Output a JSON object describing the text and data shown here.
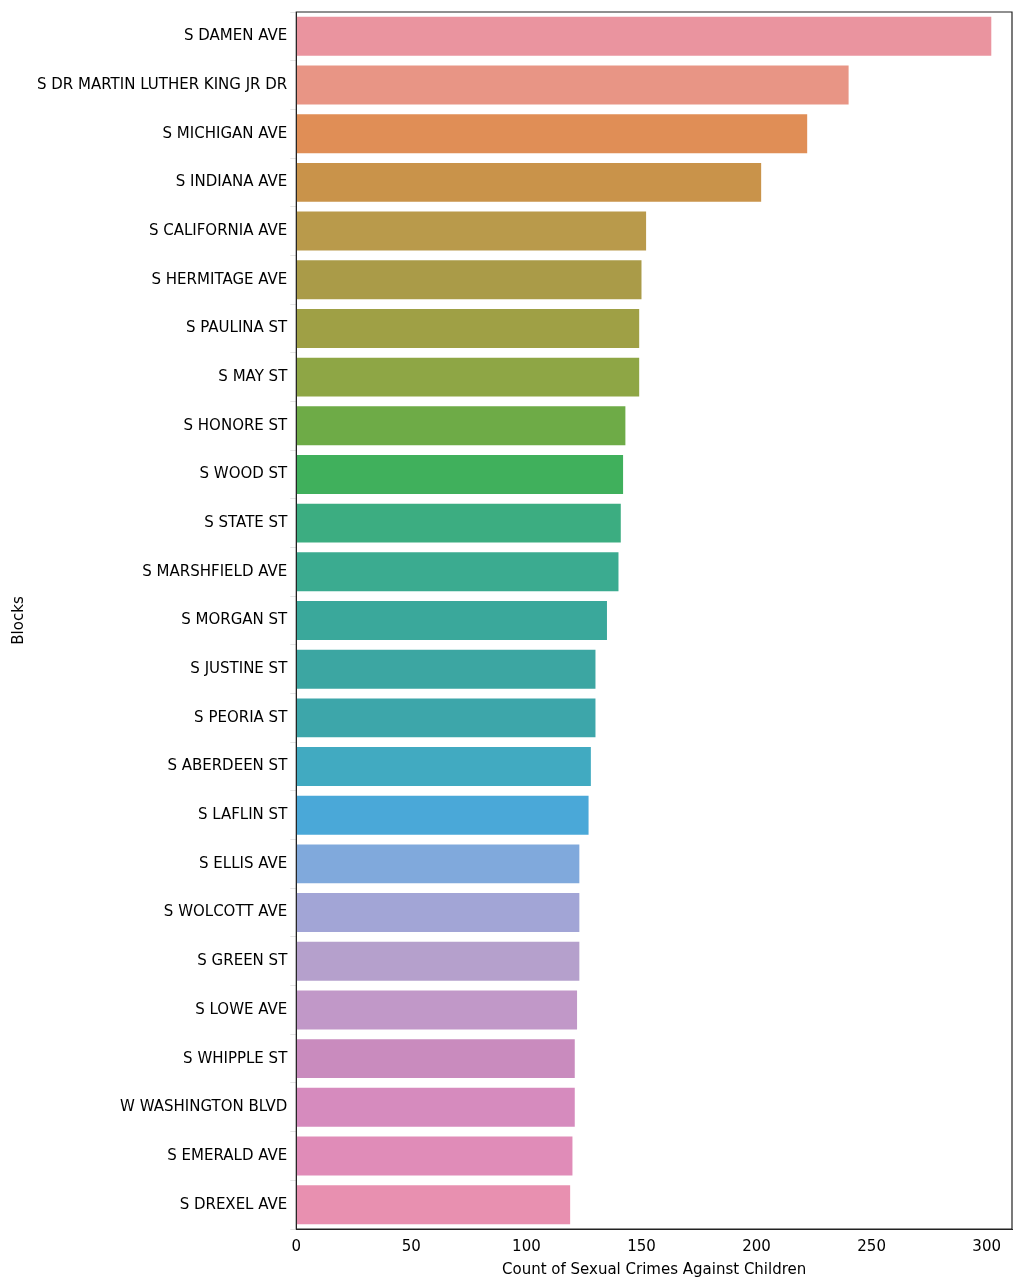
{
  "chart_data": {
    "type": "bar",
    "orientation": "horizontal",
    "xlabel": "Count of Sexual Crimes Against Children",
    "ylabel": "Blocks",
    "categories": [
      "S DAMEN AVE",
      "S DR MARTIN LUTHER KING JR DR",
      "S MICHIGAN AVE",
      "S INDIANA AVE",
      "S CALIFORNIA AVE",
      "S HERMITAGE AVE",
      "S PAULINA ST",
      "S MAY ST",
      "S HONORE ST",
      "S WOOD ST",
      "S STATE ST",
      "S MARSHFIELD AVE",
      "S MORGAN ST",
      "S JUSTINE ST",
      "S PEORIA ST",
      "S ABERDEEN ST",
      "S LAFLIN ST",
      "S ELLIS AVE",
      "S WOLCOTT AVE",
      "S GREEN ST",
      "S LOWE AVE",
      "S WHIPPLE ST",
      "W WASHINGTON BLVD",
      "S EMERALD AVE",
      "S DREXEL AVE"
    ],
    "values": [
      302,
      240,
      222,
      202,
      152,
      150,
      149,
      149,
      143,
      142,
      141,
      140,
      135,
      130,
      130,
      128,
      127,
      123,
      123,
      123,
      122,
      121,
      121,
      120,
      119
    ],
    "colors": [
      "#ea949f",
      "#e89585",
      "#e08e56",
      "#c9934a",
      "#b99a4b",
      "#aa9b48",
      "#9fa045",
      "#8ea645",
      "#6eab47",
      "#40b05c",
      "#3cad81",
      "#3bab90",
      "#3aa89b",
      "#3ca6a2",
      "#3da6aa",
      "#41aac1",
      "#4aa8d8",
      "#80a9dc",
      "#a2a5d6",
      "#b5a0cc",
      "#c198c8",
      "#c98bbe",
      "#d68bbe",
      "#e08cb8",
      "#e890b0"
    ],
    "xlim": [
      0,
      311
    ],
    "xticks": [
      0,
      50,
      100,
      150,
      200,
      250,
      300
    ],
    "grid": false,
    "legend": false
  }
}
